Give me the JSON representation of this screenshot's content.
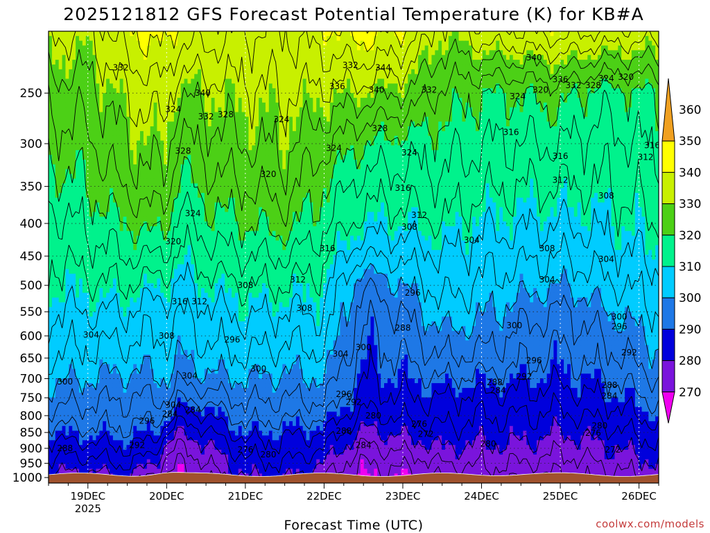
{
  "chart_data": {
    "type": "heatmap",
    "title": "2025121812 GFS Forecast Potential Temperature (K) for KB#A",
    "xlabel": "Forecast Time (UTC)",
    "ylabel": "",
    "credit": "coolwx.com/models",
    "x_ticks": [
      "19DEC",
      "20DEC",
      "21DEC",
      "22DEC",
      "23DEC",
      "24DEC",
      "25DEC",
      "26DEC"
    ],
    "x_tick_hours": [
      12,
      36,
      60,
      84,
      108,
      132,
      156,
      180
    ],
    "x_year_label": "2025",
    "x_range_hours": [
      0,
      186
    ],
    "y_ticks": [
      250,
      300,
      350,
      400,
      450,
      500,
      550,
      600,
      650,
      700,
      750,
      800,
      850,
      900,
      950,
      1000
    ],
    "y_range_hpa": [
      1020,
      200
    ],
    "colorbar": {
      "ticks": [
        360,
        350,
        340,
        330,
        320,
        310,
        300,
        290,
        280,
        270
      ],
      "bins": [
        {
          "min": 350,
          "max": 360,
          "color": "#f0a020"
        },
        {
          "min": 340,
          "max": 350,
          "color": "#ffff00"
        },
        {
          "min": 330,
          "max": 340,
          "color": "#c8f000"
        },
        {
          "min": 320,
          "max": 330,
          "color": "#4cd016"
        },
        {
          "min": 310,
          "max": 320,
          "color": "#00f28c"
        },
        {
          "min": 300,
          "max": 310,
          "color": "#00ccff"
        },
        {
          "min": 290,
          "max": 300,
          "color": "#1e78e6"
        },
        {
          "min": 280,
          "max": 290,
          "color": "#0000dc"
        },
        {
          "min": 270,
          "max": 280,
          "color": "#7a14dc"
        },
        {
          "min": 260,
          "max": 270,
          "color": "#f000f0"
        }
      ],
      "bins_order_note": "top to bottom"
    },
    "profile_pressures": [
      1000,
      950,
      900,
      850,
      800,
      750,
      700,
      650,
      600,
      550,
      500,
      450,
      400,
      350,
      300,
      250,
      200
    ],
    "profiles": [
      {
        "hour": 0,
        "theta": [
          279,
          283,
          286,
          290,
          295,
          298,
          301,
          304,
          306,
          308,
          310,
          312,
          314,
          318,
          322,
          326,
          333
        ]
      },
      {
        "hour": 12,
        "theta": [
          278,
          282,
          286,
          291,
          294,
          297,
          300,
          303,
          305,
          308,
          311,
          314,
          317,
          320,
          323,
          326,
          332
        ]
      },
      {
        "hour": 24,
        "theta": [
          280,
          285,
          288,
          291,
          294,
          296,
          299,
          302,
          305,
          308,
          312,
          316,
          320,
          325,
          328,
          332,
          339
        ]
      },
      {
        "hour": 32,
        "theta": [
          274,
          280,
          286,
          290,
          293,
          296,
          299,
          302,
          304,
          306,
          310,
          316,
          322,
          327,
          330,
          334,
          342
        ]
      },
      {
        "hour": 36,
        "theta": [
          272,
          274,
          278,
          285,
          292,
          297,
          300,
          302,
          304,
          306,
          310,
          315,
          320,
          326,
          330,
          334,
          342
        ]
      },
      {
        "hour": 40,
        "theta": [
          270,
          272,
          275,
          280,
          286,
          292,
          297,
          300,
          302,
          304,
          307,
          311,
          314,
          318,
          322,
          328,
          338
        ]
      },
      {
        "hour": 48,
        "theta": [
          272,
          276,
          279,
          283,
          288,
          294,
          299,
          302,
          305,
          307,
          310,
          314,
          318,
          322,
          326,
          330,
          338
        ]
      },
      {
        "hour": 60,
        "theta": [
          280,
          283,
          286,
          290,
          294,
          297,
          300,
          304,
          306,
          309,
          312,
          316,
          320,
          324,
          328,
          331,
          336
        ]
      },
      {
        "hour": 72,
        "theta": [
          281,
          284,
          287,
          289,
          293,
          296,
          299,
          302,
          305,
          308,
          312,
          316,
          322,
          326,
          329,
          332,
          336
        ]
      },
      {
        "hour": 84,
        "theta": [
          276,
          280,
          284,
          288,
          293,
          297,
          300,
          303,
          306,
          308,
          310,
          313,
          317,
          320,
          325,
          331,
          339
        ]
      },
      {
        "hour": 96,
        "theta": [
          270,
          272,
          275,
          279,
          283,
          286,
          288,
          290,
          291,
          293,
          296,
          304,
          310,
          314,
          320,
          330,
          342
        ]
      },
      {
        "hour": 108,
        "theta": [
          271,
          273,
          277,
          281,
          285,
          288,
          290,
          292,
          294,
          296,
          300,
          305,
          310,
          314,
          318,
          328,
          340
        ]
      },
      {
        "hour": 120,
        "theta": [
          272,
          276,
          280,
          283,
          286,
          288,
          292,
          296,
          299,
          303,
          306,
          308,
          312,
          315,
          318,
          323,
          330
        ]
      },
      {
        "hour": 132,
        "theta": [
          274,
          277,
          279,
          282,
          284,
          287,
          291,
          295,
          298,
          301,
          303,
          306,
          309,
          313,
          316,
          320,
          335
        ]
      },
      {
        "hour": 144,
        "theta": [
          273,
          276,
          279,
          282,
          284,
          287,
          290,
          293,
          295,
          298,
          302,
          305,
          309,
          312,
          316,
          320,
          336
        ]
      },
      {
        "hour": 156,
        "theta": [
          271,
          274,
          277,
          280,
          283,
          286,
          289,
          291,
          293,
          295,
          300,
          304,
          308,
          312,
          316,
          322,
          338
        ]
      },
      {
        "hour": 168,
        "theta": [
          274,
          276,
          279,
          282,
          285,
          288,
          291,
          294,
          296,
          299,
          303,
          306,
          309,
          312,
          314,
          318,
          336
        ]
      },
      {
        "hour": 186,
        "theta": [
          277,
          280,
          283,
          286,
          290,
          293,
          296,
          299,
          301,
          304,
          306,
          309,
          312,
          314,
          317,
          320,
          334
        ]
      }
    ],
    "contour_interval": 4,
    "contour_labels": [
      {
        "hour": 22,
        "hpa": 228,
        "text": "332"
      },
      {
        "hour": 47,
        "hpa": 250,
        "text": "340"
      },
      {
        "hour": 38,
        "hpa": 265,
        "text": "324"
      },
      {
        "hour": 54,
        "hpa": 270,
        "text": "328"
      },
      {
        "hour": 48,
        "hpa": 272,
        "text": "332"
      },
      {
        "hour": 71,
        "hpa": 275,
        "text": "324"
      },
      {
        "hour": 92,
        "hpa": 226,
        "text": "332"
      },
      {
        "hour": 102,
        "hpa": 228,
        "text": "344"
      },
      {
        "hour": 88,
        "hpa": 244,
        "text": "336"
      },
      {
        "hour": 100,
        "hpa": 247,
        "text": "340"
      },
      {
        "hour": 116,
        "hpa": 247,
        "text": "332"
      },
      {
        "hour": 101,
        "hpa": 284,
        "text": "328"
      },
      {
        "hour": 87,
        "hpa": 305,
        "text": "324"
      },
      {
        "hour": 41,
        "hpa": 308,
        "text": "328"
      },
      {
        "hour": 110,
        "hpa": 310,
        "text": "324"
      },
      {
        "hour": 67,
        "hpa": 335,
        "text": "320"
      },
      {
        "hour": 108,
        "hpa": 352,
        "text": "316"
      },
      {
        "hour": 44,
        "hpa": 386,
        "text": "324"
      },
      {
        "hour": 113,
        "hpa": 388,
        "text": "312"
      },
      {
        "hour": 38,
        "hpa": 427,
        "text": "320"
      },
      {
        "hour": 110,
        "hpa": 405,
        "text": "308"
      },
      {
        "hour": 85,
        "hpa": 438,
        "text": "316"
      },
      {
        "hour": 129,
        "hpa": 425,
        "text": "304"
      },
      {
        "hour": 148,
        "hpa": 220,
        "text": "340"
      },
      {
        "hour": 156,
        "hpa": 238,
        "text": "336"
      },
      {
        "hour": 143,
        "hpa": 253,
        "text": "324"
      },
      {
        "hour": 150,
        "hpa": 247,
        "text": "320"
      },
      {
        "hour": 160,
        "hpa": 243,
        "text": "332"
      },
      {
        "hour": 166,
        "hpa": 243,
        "text": "328"
      },
      {
        "hour": 170,
        "hpa": 237,
        "text": "324"
      },
      {
        "hour": 176,
        "hpa": 236,
        "text": "320"
      },
      {
        "hour": 141,
        "hpa": 288,
        "text": "316"
      },
      {
        "hour": 156,
        "hpa": 314,
        "text": "316"
      },
      {
        "hour": 156,
        "hpa": 342,
        "text": "312"
      },
      {
        "hour": 170,
        "hpa": 362,
        "text": "308"
      },
      {
        "hour": 184,
        "hpa": 302,
        "text": "316"
      },
      {
        "hour": 182,
        "hpa": 315,
        "text": "312"
      },
      {
        "hour": 152,
        "hpa": 438,
        "text": "308"
      },
      {
        "hour": 170,
        "hpa": 455,
        "text": "304"
      },
      {
        "hour": 152,
        "hpa": 490,
        "text": "304"
      },
      {
        "hour": 76,
        "hpa": 490,
        "text": "312"
      },
      {
        "hour": 60,
        "hpa": 500,
        "text": "308"
      },
      {
        "hour": 78,
        "hpa": 543,
        "text": "308"
      },
      {
        "hour": 40,
        "hpa": 530,
        "text": "316"
      },
      {
        "hour": 46,
        "hpa": 530,
        "text": "312"
      },
      {
        "hour": 111,
        "hpa": 514,
        "text": "296"
      },
      {
        "hour": 108,
        "hpa": 583,
        "text": "288"
      },
      {
        "hour": 96,
        "hpa": 625,
        "text": "300"
      },
      {
        "hour": 89,
        "hpa": 640,
        "text": "304"
      },
      {
        "hour": 64,
        "hpa": 676,
        "text": "300"
      },
      {
        "hour": 56,
        "hpa": 608,
        "text": "296"
      },
      {
        "hour": 13,
        "hpa": 598,
        "text": "304"
      },
      {
        "hour": 36,
        "hpa": 600,
        "text": "308"
      },
      {
        "hour": 43,
        "hpa": 693,
        "text": "304"
      },
      {
        "hour": 5,
        "hpa": 708,
        "text": "300"
      },
      {
        "hour": 142,
        "hpa": 578,
        "text": "300"
      },
      {
        "hour": 174,
        "hpa": 560,
        "text": "300"
      },
      {
        "hour": 174,
        "hpa": 580,
        "text": "296"
      },
      {
        "hour": 177,
        "hpa": 637,
        "text": "292"
      },
      {
        "hour": 148,
        "hpa": 656,
        "text": "296"
      },
      {
        "hour": 145,
        "hpa": 695,
        "text": "292"
      },
      {
        "hour": 136,
        "hpa": 710,
        "text": "288"
      },
      {
        "hour": 137,
        "hpa": 730,
        "text": "284"
      },
      {
        "hour": 171,
        "hpa": 717,
        "text": "288"
      },
      {
        "hour": 171,
        "hpa": 745,
        "text": "284"
      },
      {
        "hour": 168,
        "hpa": 830,
        "text": "280"
      },
      {
        "hour": 166,
        "hpa": 852,
        "text": "276"
      },
      {
        "hour": 172,
        "hpa": 905,
        "text": "272"
      },
      {
        "hour": 90,
        "hpa": 740,
        "text": "296"
      },
      {
        "hour": 93,
        "hpa": 762,
        "text": "292"
      },
      {
        "hour": 38,
        "hpa": 770,
        "text": "304"
      },
      {
        "hour": 44,
        "hpa": 783,
        "text": "284"
      },
      {
        "hour": 30,
        "hpa": 815,
        "text": "296"
      },
      {
        "hour": 27,
        "hpa": 890,
        "text": "292"
      },
      {
        "hour": 5,
        "hpa": 900,
        "text": "288"
      },
      {
        "hour": 90,
        "hpa": 845,
        "text": "288"
      },
      {
        "hour": 96,
        "hpa": 890,
        "text": "284"
      },
      {
        "hour": 99,
        "hpa": 800,
        "text": "280"
      },
      {
        "hour": 113,
        "hpa": 825,
        "text": "276"
      },
      {
        "hour": 115,
        "hpa": 855,
        "text": "272"
      },
      {
        "hour": 134,
        "hpa": 885,
        "text": "280"
      },
      {
        "hour": 60,
        "hpa": 905,
        "text": "276"
      },
      {
        "hour": 67,
        "hpa": 920,
        "text": "280"
      },
      {
        "hour": 37,
        "hpa": 795,
        "text": "284"
      }
    ]
  }
}
